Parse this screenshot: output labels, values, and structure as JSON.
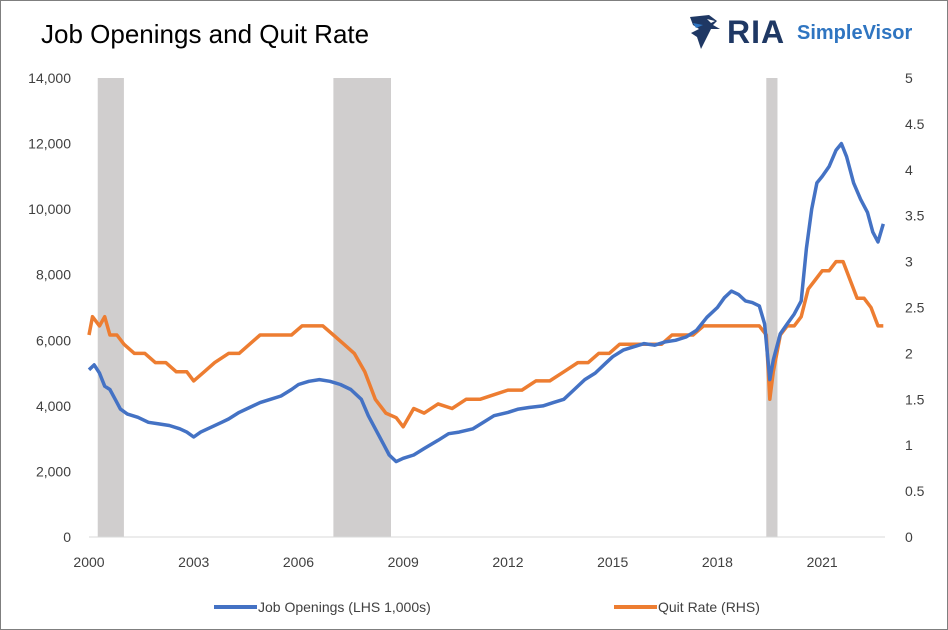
{
  "header": {
    "title": "Job Openings and Quit Rate",
    "logo_ria": "RIA",
    "logo_simplevisor": "SimpleVisor"
  },
  "colors": {
    "job_openings": "#4472c4",
    "quit_rate": "#ed7d31",
    "recession": "#d0cece"
  },
  "chart_data": {
    "type": "line",
    "x_ticks": [
      "2000",
      "2003",
      "2006",
      "2009",
      "2012",
      "2015",
      "2018",
      "2021"
    ],
    "y_left_ticks": [
      "0",
      "2,000",
      "4,000",
      "6,000",
      "8,000",
      "10,000",
      "12,000",
      "14,000"
    ],
    "y_right_ticks": [
      "0",
      "0.5",
      "1",
      "1.5",
      "2",
      "2.5",
      "3",
      "3.5",
      "4",
      "4.5",
      "5"
    ],
    "xlim": [
      2000,
      2022.8
    ],
    "ylim_left": [
      0,
      14000
    ],
    "ylim_right": [
      0,
      5
    ],
    "recessions": [
      [
        2000.25,
        2001.0
      ],
      [
        2007.0,
        2008.65
      ],
      [
        2019.4,
        2019.72
      ]
    ],
    "legend": [
      "Job Openings (LHS 1,000s)",
      "Quit Rate (RHS)"
    ],
    "series": [
      {
        "name": "Job Openings (LHS 1,000s)",
        "axis": "left",
        "points": [
          [
            2000.0,
            5100
          ],
          [
            2000.15,
            5250
          ],
          [
            2000.3,
            5000
          ],
          [
            2000.45,
            4600
          ],
          [
            2000.6,
            4500
          ],
          [
            2000.75,
            4200
          ],
          [
            2000.9,
            3900
          ],
          [
            2001.1,
            3750
          ],
          [
            2001.4,
            3650
          ],
          [
            2001.7,
            3500
          ],
          [
            2002.0,
            3450
          ],
          [
            2002.3,
            3400
          ],
          [
            2002.6,
            3300
          ],
          [
            2002.8,
            3200
          ],
          [
            2003.0,
            3050
          ],
          [
            2003.2,
            3200
          ],
          [
            2003.5,
            3350
          ],
          [
            2003.8,
            3500
          ],
          [
            2004.0,
            3600
          ],
          [
            2004.3,
            3800
          ],
          [
            2004.6,
            3950
          ],
          [
            2004.9,
            4100
          ],
          [
            2005.2,
            4200
          ],
          [
            2005.5,
            4300
          ],
          [
            2005.8,
            4500
          ],
          [
            2006.0,
            4650
          ],
          [
            2006.3,
            4750
          ],
          [
            2006.6,
            4800
          ],
          [
            2006.9,
            4750
          ],
          [
            2007.2,
            4650
          ],
          [
            2007.5,
            4500
          ],
          [
            2007.8,
            4200
          ],
          [
            2008.0,
            3700
          ],
          [
            2008.2,
            3300
          ],
          [
            2008.4,
            2900
          ],
          [
            2008.6,
            2500
          ],
          [
            2008.8,
            2300
          ],
          [
            2009.0,
            2400
          ],
          [
            2009.3,
            2500
          ],
          [
            2009.6,
            2700
          ],
          [
            2010.0,
            2950
          ],
          [
            2010.3,
            3150
          ],
          [
            2010.6,
            3200
          ],
          [
            2011.0,
            3300
          ],
          [
            2011.3,
            3500
          ],
          [
            2011.6,
            3700
          ],
          [
            2012.0,
            3800
          ],
          [
            2012.3,
            3900
          ],
          [
            2012.6,
            3950
          ],
          [
            2013.0,
            4000
          ],
          [
            2013.3,
            4100
          ],
          [
            2013.6,
            4200
          ],
          [
            2013.9,
            4500
          ],
          [
            2014.2,
            4800
          ],
          [
            2014.5,
            5000
          ],
          [
            2014.8,
            5300
          ],
          [
            2015.0,
            5500
          ],
          [
            2015.3,
            5700
          ],
          [
            2015.6,
            5800
          ],
          [
            2015.9,
            5900
          ],
          [
            2016.2,
            5850
          ],
          [
            2016.5,
            5950
          ],
          [
            2016.8,
            6000
          ],
          [
            2017.1,
            6100
          ],
          [
            2017.4,
            6300
          ],
          [
            2017.7,
            6700
          ],
          [
            2018.0,
            7000
          ],
          [
            2018.2,
            7300
          ],
          [
            2018.4,
            7500
          ],
          [
            2018.6,
            7400
          ],
          [
            2018.8,
            7200
          ],
          [
            2019.0,
            7150
          ],
          [
            2019.2,
            7050
          ],
          [
            2019.35,
            6500
          ],
          [
            2019.5,
            4800
          ],
          [
            2019.6,
            5400
          ],
          [
            2019.8,
            6200
          ],
          [
            2020.0,
            6500
          ],
          [
            2020.2,
            6800
          ],
          [
            2020.4,
            7200
          ],
          [
            2020.55,
            8800
          ],
          [
            2020.7,
            10000
          ],
          [
            2020.85,
            10800
          ],
          [
            2021.0,
            11000
          ],
          [
            2021.2,
            11300
          ],
          [
            2021.4,
            11800
          ],
          [
            2021.55,
            12000
          ],
          [
            2021.7,
            11600
          ],
          [
            2021.9,
            10800
          ],
          [
            2022.1,
            10300
          ],
          [
            2022.3,
            9900
          ],
          [
            2022.45,
            9300
          ],
          [
            2022.6,
            9000
          ],
          [
            2022.75,
            9550
          ]
        ]
      },
      {
        "name": "Quit Rate (RHS)",
        "axis": "right",
        "points": [
          [
            2000.0,
            2.2
          ],
          [
            2000.1,
            2.4
          ],
          [
            2000.3,
            2.3
          ],
          [
            2000.45,
            2.4
          ],
          [
            2000.6,
            2.2
          ],
          [
            2000.8,
            2.2
          ],
          [
            2001.0,
            2.1
          ],
          [
            2001.3,
            2.0
          ],
          [
            2001.6,
            2.0
          ],
          [
            2001.9,
            1.9
          ],
          [
            2002.2,
            1.9
          ],
          [
            2002.5,
            1.8
          ],
          [
            2002.8,
            1.8
          ],
          [
            2003.0,
            1.7
          ],
          [
            2003.3,
            1.8
          ],
          [
            2003.6,
            1.9
          ],
          [
            2004.0,
            2.0
          ],
          [
            2004.3,
            2.0
          ],
          [
            2004.6,
            2.1
          ],
          [
            2004.9,
            2.2
          ],
          [
            2005.2,
            2.2
          ],
          [
            2005.5,
            2.2
          ],
          [
            2005.8,
            2.2
          ],
          [
            2006.1,
            2.3
          ],
          [
            2006.4,
            2.3
          ],
          [
            2006.7,
            2.3
          ],
          [
            2007.0,
            2.2
          ],
          [
            2007.3,
            2.1
          ],
          [
            2007.6,
            2.0
          ],
          [
            2007.9,
            1.8
          ],
          [
            2008.2,
            1.5
          ],
          [
            2008.5,
            1.35
          ],
          [
            2008.8,
            1.3
          ],
          [
            2009.0,
            1.2
          ],
          [
            2009.3,
            1.4
          ],
          [
            2009.6,
            1.35
          ],
          [
            2010.0,
            1.45
          ],
          [
            2010.4,
            1.4
          ],
          [
            2010.8,
            1.5
          ],
          [
            2011.2,
            1.5
          ],
          [
            2011.6,
            1.55
          ],
          [
            2012.0,
            1.6
          ],
          [
            2012.4,
            1.6
          ],
          [
            2012.8,
            1.7
          ],
          [
            2013.2,
            1.7
          ],
          [
            2013.6,
            1.8
          ],
          [
            2014.0,
            1.9
          ],
          [
            2014.3,
            1.9
          ],
          [
            2014.6,
            2.0
          ],
          [
            2014.9,
            2.0
          ],
          [
            2015.2,
            2.1
          ],
          [
            2015.5,
            2.1
          ],
          [
            2015.8,
            2.1
          ],
          [
            2016.1,
            2.1
          ],
          [
            2016.4,
            2.1
          ],
          [
            2016.7,
            2.2
          ],
          [
            2017.0,
            2.2
          ],
          [
            2017.3,
            2.2
          ],
          [
            2017.6,
            2.3
          ],
          [
            2018.0,
            2.3
          ],
          [
            2018.3,
            2.3
          ],
          [
            2018.6,
            2.3
          ],
          [
            2018.9,
            2.3
          ],
          [
            2019.2,
            2.3
          ],
          [
            2019.4,
            2.2
          ],
          [
            2019.5,
            1.5
          ],
          [
            2019.6,
            1.8
          ],
          [
            2019.8,
            2.2
          ],
          [
            2020.0,
            2.3
          ],
          [
            2020.2,
            2.3
          ],
          [
            2020.4,
            2.4
          ],
          [
            2020.6,
            2.7
          ],
          [
            2020.8,
            2.8
          ],
          [
            2021.0,
            2.9
          ],
          [
            2021.2,
            2.9
          ],
          [
            2021.4,
            3.0
          ],
          [
            2021.6,
            3.0
          ],
          [
            2021.8,
            2.8
          ],
          [
            2022.0,
            2.6
          ],
          [
            2022.2,
            2.6
          ],
          [
            2022.4,
            2.5
          ],
          [
            2022.6,
            2.3
          ],
          [
            2022.75,
            2.3
          ]
        ]
      }
    ]
  }
}
